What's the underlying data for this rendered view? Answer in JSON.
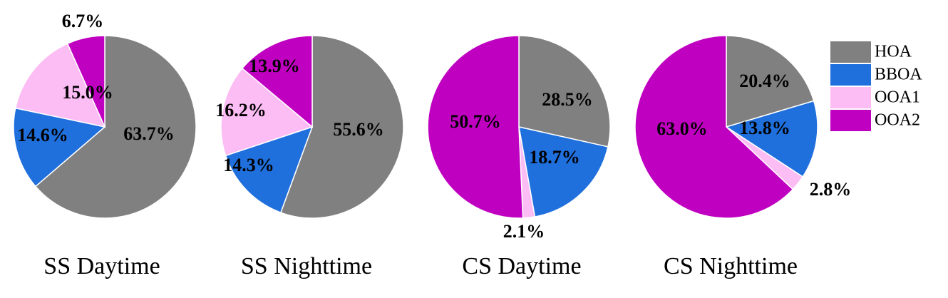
{
  "chart_data": [
    {
      "type": "pie",
      "title": "SS Daytime",
      "categories": [
        "HOA",
        "BBOA",
        "OOA1",
        "OOA2"
      ],
      "values": [
        63.7,
        14.6,
        15.0,
        6.7
      ],
      "labels": [
        "63.7%",
        "14.6%",
        "15.0%",
        "6.7%"
      ]
    },
    {
      "type": "pie",
      "title": "SS Nighttime",
      "categories": [
        "HOA",
        "BBOA",
        "OOA1",
        "OOA2"
      ],
      "values": [
        55.6,
        14.3,
        16.2,
        13.9
      ],
      "labels": [
        "55.6%",
        "14.3%",
        "16.2%",
        "13.9%"
      ]
    },
    {
      "type": "pie",
      "title": "CS Daytime",
      "categories": [
        "HOA",
        "BBOA",
        "OOA1",
        "OOA2"
      ],
      "values": [
        28.5,
        18.7,
        2.1,
        50.7
      ],
      "labels": [
        "28.5%",
        "18.7%",
        "2.1%",
        "50.7%"
      ]
    },
    {
      "type": "pie",
      "title": "CS Nighttime",
      "categories": [
        "HOA",
        "BBOA",
        "OOA1",
        "OOA2"
      ],
      "values": [
        20.4,
        13.8,
        2.8,
        63.0
      ],
      "labels": [
        "20.4%",
        "13.8%",
        "2.8%",
        "63.0%"
      ]
    }
  ],
  "legend": {
    "position": "top-right",
    "items": [
      {
        "label": "HOA",
        "color": "#808080"
      },
      {
        "label": "BBOA",
        "color": "#1f6fdc"
      },
      {
        "label": "OOA1",
        "color": "#fcbcf4"
      },
      {
        "label": "OOA2",
        "color": "#c000c0"
      }
    ]
  }
}
